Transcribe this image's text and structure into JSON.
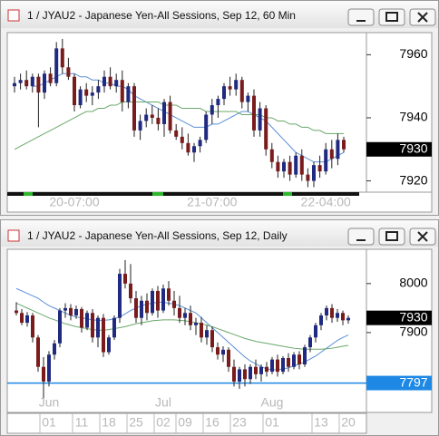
{
  "chart_data": [
    {
      "type": "candlestick",
      "title": "1 / JYAU2 - Japanese Yen-All Sessions, Sep 12, 60 Min",
      "categories": [
        null,
        null,
        null,
        null,
        null,
        null,
        null,
        null,
        null,
        null,
        "20-07:00",
        null,
        null,
        null,
        null,
        null,
        null,
        null,
        null,
        null,
        null,
        null,
        null,
        null,
        null,
        null,
        null,
        null,
        null,
        null,
        null,
        null,
        null,
        "21-07:00",
        null,
        null,
        null,
        null,
        null,
        null,
        null,
        null,
        null,
        null,
        null,
        null,
        null,
        null,
        null,
        null,
        null,
        null,
        "22-04:00",
        null,
        null,
        null
      ],
      "open": [
        7950,
        7951,
        7952,
        7950,
        7953,
        7948,
        7954,
        7951,
        7962,
        7956,
        7953,
        7944,
        7949,
        7947,
        7948,
        7950,
        7953,
        7950,
        7952,
        7945,
        7950,
        7936,
        7939,
        7941,
        7940,
        7938,
        7945,
        7936,
        7934,
        7932,
        7929,
        7931,
        7933,
        7941,
        7944,
        7946,
        7950,
        7949,
        7952,
        7945,
        7947,
        7936,
        7943,
        7930,
        7926,
        7923,
        7926,
        7922,
        7928,
        7922,
        7920,
        7925,
        7923,
        7930,
        7927,
        7933
      ],
      "high": [
        7953,
        7954,
        7955,
        7954,
        7954,
        7955,
        7956,
        7964,
        7965,
        7959,
        7954,
        7950,
        7951,
        7950,
        7952,
        7955,
        7956,
        7954,
        7955,
        7951,
        7951,
        7941,
        7943,
        7944,
        7943,
        7946,
        7947,
        7938,
        7937,
        7935,
        7932,
        7934,
        7942,
        7946,
        7947,
        7951,
        7953,
        7954,
        7953,
        7948,
        7949,
        7945,
        7944,
        7932,
        7928,
        7927,
        7928,
        7929,
        7930,
        7924,
        7926,
        7928,
        7932,
        7933,
        7935,
        7934
      ],
      "low": [
        7948,
        7949,
        7949,
        7948,
        7937,
        7946,
        7950,
        7950,
        7954,
        7952,
        7942,
        7943,
        7945,
        7944,
        7946,
        7948,
        7949,
        7948,
        7942,
        7943,
        7934,
        7933,
        7937,
        7938,
        7936,
        7934,
        7935,
        7933,
        7930,
        7928,
        7926,
        7929,
        7932,
        7938,
        7940,
        7944,
        7947,
        7947,
        7943,
        7942,
        7934,
        7934,
        7928,
        7924,
        7921,
        7921,
        7920,
        7921,
        7920,
        7918,
        7918,
        7921,
        7922,
        7924,
        7925,
        7929
      ],
      "close": [
        7951,
        7952,
        7950,
        7953,
        7948,
        7954,
        7951,
        7962,
        7956,
        7953,
        7944,
        7949,
        7947,
        7948,
        7950,
        7953,
        7950,
        7952,
        7945,
        7950,
        7936,
        7939,
        7941,
        7940,
        7938,
        7945,
        7936,
        7934,
        7932,
        7929,
        7931,
        7933,
        7941,
        7944,
        7946,
        7950,
        7949,
        7952,
        7945,
        7947,
        7936,
        7943,
        7930,
        7926,
        7923,
        7926,
        7922,
        7928,
        7922,
        7920,
        7925,
        7923,
        7930,
        7927,
        7933,
        7930
      ],
      "up_color": "#1f2a80",
      "down_color": "#7a1c1c",
      "overlays": [
        {
          "color": "#5b8fd6",
          "values": [
            null,
            null,
            null,
            7950,
            7950,
            7951,
            7952,
            7953,
            7954,
            7954,
            7954,
            7953,
            7953,
            7952,
            7952,
            7951,
            7951,
            7950,
            7950,
            7949,
            7947,
            7946,
            7945,
            7944,
            7943,
            7942,
            7941,
            7940,
            7939,
            7938,
            7937,
            7937,
            7937,
            7938,
            7938,
            7939,
            7940,
            7941,
            7942,
            7942,
            7941,
            7940,
            7939,
            7937,
            7935,
            7933,
            7931,
            7929,
            7928,
            7927,
            7926,
            7926,
            7926,
            7927,
            7928,
            7929
          ]
        },
        {
          "color": "#6aa86a",
          "values": [
            7930,
            7931,
            7932,
            7933,
            7934,
            7935,
            7936,
            7937,
            7938,
            7939,
            7940,
            7941,
            7942,
            7942,
            7943,
            7943,
            7944,
            7944,
            7945,
            7945,
            7945,
            7945,
            7945,
            7945,
            7945,
            7944,
            7944,
            7944,
            7943,
            7943,
            7943,
            7943,
            7942,
            7942,
            7942,
            7942,
            7942,
            7942,
            7941,
            7941,
            7941,
            7941,
            7940,
            7940,
            7939,
            7939,
            7938,
            7938,
            7937,
            7937,
            7936,
            7936,
            7935,
            7935,
            7935,
            7935
          ]
        }
      ],
      "ylim": [
        7917,
        7967
      ],
      "yticks": [
        7960,
        7940,
        7920
      ],
      "last_price": 7930
    },
    {
      "type": "candlestick",
      "title": "1 / JYAU2 - Japanese Yen-All Sessions, Sep 12, Daily",
      "categories": [
        null,
        null,
        null,
        null,
        null,
        null,
        "01",
        null,
        null,
        null,
        null,
        null,
        "11",
        null,
        null,
        null,
        null,
        "18",
        null,
        null,
        null,
        null,
        "25",
        null,
        null,
        null,
        null,
        "02",
        null,
        null,
        null,
        "09",
        null,
        null,
        null,
        null,
        "16",
        null,
        null,
        null,
        null,
        "23",
        null,
        null,
        null,
        null,
        null,
        "01",
        null,
        null,
        null,
        null,
        null,
        null,
        null,
        null,
        "13",
        null,
        null,
        null,
        null,
        "20"
      ],
      "month_labels": [
        null,
        null,
        null,
        null,
        null,
        null,
        "Jun",
        null,
        null,
        null,
        null,
        null,
        null,
        null,
        null,
        null,
        null,
        null,
        null,
        null,
        null,
        null,
        null,
        null,
        null,
        null,
        null,
        "Jul",
        null,
        null,
        null,
        null,
        null,
        null,
        null,
        null,
        null,
        null,
        null,
        null,
        null,
        null,
        null,
        null,
        null,
        null,
        null,
        "Aug",
        null,
        null,
        null,
        null,
        null,
        null,
        null,
        null,
        null,
        null,
        null,
        null,
        null,
        null
      ],
      "open": [
        7945,
        7940,
        7920,
        7935,
        7890,
        7830,
        7800,
        7855,
        7878,
        7945,
        7950,
        7935,
        7948,
        7910,
        7940,
        7890,
        7930,
        7860,
        7890,
        7930,
        8020,
        8000,
        7970,
        7930,
        7965,
        7940,
        7985,
        7945,
        7990,
        7965,
        7950,
        7930,
        7940,
        7915,
        7920,
        7890,
        7905,
        7870,
        7855,
        7865,
        7830,
        7800,
        7825,
        7805,
        7830,
        7815,
        7830,
        7820,
        7845,
        7820,
        7848,
        7830,
        7855,
        7835,
        7870,
        7890,
        7915,
        7935,
        7950,
        7930,
        7940,
        7925
      ],
      "high": [
        7962,
        7948,
        7942,
        7940,
        7895,
        7850,
        7862,
        7885,
        7950,
        7960,
        7958,
        7955,
        7952,
        7945,
        7948,
        7935,
        7938,
        7895,
        7935,
        8030,
        8048,
        8040,
        7985,
        7975,
        7980,
        7990,
        7995,
        7998,
        8005,
        7985,
        7975,
        7950,
        7955,
        7930,
        7932,
        7915,
        7912,
        7880,
        7872,
        7870,
        7845,
        7830,
        7835,
        7835,
        7845,
        7835,
        7840,
        7850,
        7855,
        7852,
        7858,
        7860,
        7862,
        7875,
        7895,
        7920,
        7940,
        7955,
        7958,
        7948,
        7945,
        7935
      ],
      "low": [
        7935,
        7915,
        7912,
        7880,
        7820,
        7765,
        7790,
        7845,
        7870,
        7930,
        7925,
        7928,
        7900,
        7905,
        7880,
        7870,
        7850,
        7855,
        7885,
        7920,
        7990,
        7960,
        7920,
        7915,
        7925,
        7935,
        7930,
        7940,
        7955,
        7935,
        7920,
        7915,
        7905,
        7895,
        7880,
        7875,
        7860,
        7845,
        7840,
        7820,
        7790,
        7785,
        7790,
        7795,
        7805,
        7800,
        7810,
        7815,
        7810,
        7815,
        7820,
        7825,
        7825,
        7830,
        7860,
        7880,
        7905,
        7925,
        7920,
        7922,
        7915,
        7918
      ],
      "close": [
        7940,
        7920,
        7935,
        7890,
        7830,
        7800,
        7855,
        7878,
        7945,
        7950,
        7935,
        7948,
        7910,
        7940,
        7890,
        7930,
        7860,
        7890,
        7930,
        8020,
        8000,
        7970,
        7930,
        7965,
        7940,
        7985,
        7945,
        7990,
        7965,
        7950,
        7930,
        7940,
        7915,
        7920,
        7890,
        7905,
        7870,
        7855,
        7865,
        7830,
        7800,
        7825,
        7805,
        7830,
        7815,
        7830,
        7820,
        7845,
        7820,
        7848,
        7830,
        7855,
        7835,
        7870,
        7890,
        7915,
        7935,
        7950,
        7930,
        7940,
        7925,
        7930
      ],
      "up_color": "#1f2a80",
      "down_color": "#7a1c1c",
      "overlays": [
        {
          "color": "#5b8fd6",
          "values": [
            7990,
            7985,
            7980,
            7975,
            7970,
            7962,
            7955,
            7950,
            7945,
            7940,
            7935,
            7932,
            7930,
            7928,
            7926,
            7925,
            7925,
            7926,
            7928,
            7932,
            7938,
            7945,
            7950,
            7955,
            7958,
            7960,
            7962,
            7962,
            7960,
            7958,
            7955,
            7950,
            7945,
            7940,
            7930,
            7920,
            7910,
            7900,
            7890,
            7880,
            7870,
            7860,
            7850,
            7842,
            7836,
            7830,
            7826,
            7824,
            7824,
            7826,
            7828,
            7832,
            7836,
            7840,
            7846,
            7852,
            7860,
            7868,
            7876,
            7884,
            7890,
            7895
          ]
        },
        {
          "color": "#6aa86a",
          "values": [
            7960,
            7955,
            7950,
            7945,
            7940,
            7935,
            7930,
            7926,
            7922,
            7918,
            7915,
            7912,
            7910,
            7908,
            7906,
            7905,
            7905,
            7906,
            7908,
            7910,
            7912,
            7915,
            7918,
            7920,
            7922,
            7924,
            7925,
            7926,
            7926,
            7926,
            7925,
            7924,
            7922,
            7920,
            7918,
            7915,
            7912,
            7908,
            7904,
            7900,
            7896,
            7892,
            7888,
            7885,
            7882,
            7880,
            7878,
            7876,
            7874,
            7872,
            7870,
            7868,
            7867,
            7866,
            7866,
            7866,
            7866,
            7867,
            7868,
            7870,
            7872,
            7874
          ]
        }
      ],
      "ylim": [
        7737,
        8070
      ],
      "yticks": [
        8000,
        7900
      ],
      "last_price": 7930,
      "level": 7797,
      "level_color": "#1e88e5"
    }
  ]
}
